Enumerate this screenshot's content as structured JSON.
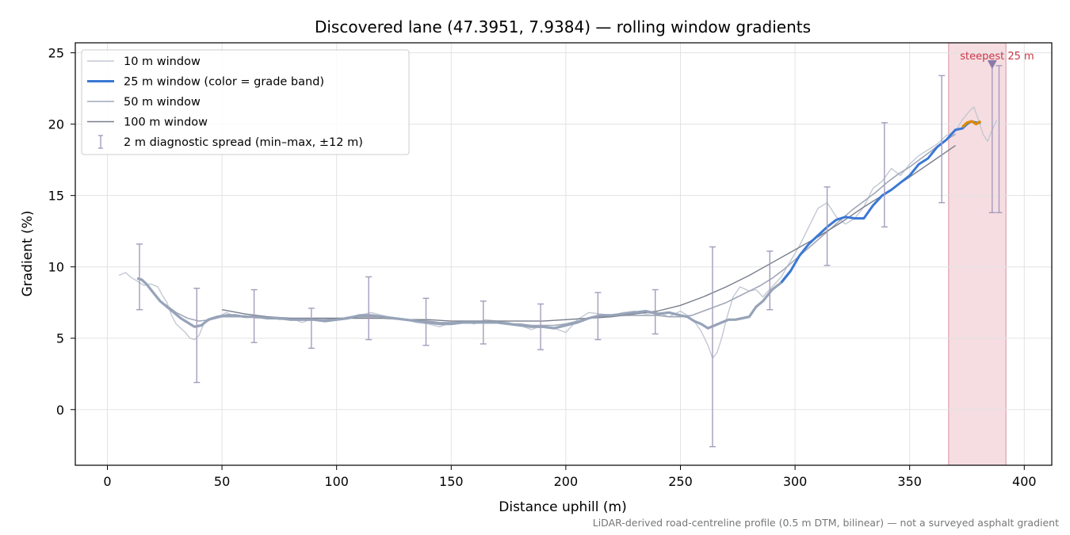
{
  "chart_data": {
    "type": "line",
    "title": "Discovered lane (47.3951, 7.9384) — rolling window gradients",
    "xlabel": "Distance uphill (m)",
    "ylabel": "Gradient (%)",
    "xlim": [
      -14,
      412
    ],
    "ylim": [
      -3.9,
      25.7
    ],
    "xticks": [
      0,
      50,
      100,
      150,
      200,
      250,
      300,
      350,
      400
    ],
    "yticks": [
      0,
      5,
      10,
      15,
      20,
      25
    ],
    "grid": true,
    "legend_position": "upper-left",
    "footnote": "LiDAR-derived road-centreline profile (0.5 m DTM, bilinear) — not a surveyed asphalt gradient",
    "series": [
      {
        "name": "10 m window",
        "color": "#c3c8d2",
        "x": [
          5,
          8,
          10,
          13,
          16,
          19,
          22,
          24,
          26,
          28,
          30,
          32,
          34,
          36,
          38,
          40,
          42,
          45,
          48,
          52,
          56,
          60,
          65,
          70,
          75,
          80,
          85,
          90,
          95,
          100,
          105,
          110,
          115,
          120,
          125,
          130,
          135,
          140,
          145,
          150,
          155,
          160,
          165,
          170,
          175,
          180,
          185,
          190,
          195,
          200,
          205,
          210,
          215,
          220,
          225,
          230,
          235,
          240,
          245,
          250,
          253,
          256,
          259,
          262,
          264,
          266,
          268,
          270,
          273,
          276,
          280,
          283,
          286,
          290,
          294,
          298,
          302,
          306,
          310,
          314,
          318,
          322,
          326,
          330,
          334,
          338,
          342,
          346,
          350,
          354,
          358,
          362,
          366,
          370,
          373,
          376,
          378,
          380,
          382,
          384,
          386,
          388
        ],
        "y": [
          9.4,
          9.6,
          9.3,
          9.0,
          8.7,
          8.8,
          8.6,
          8.0,
          7.5,
          6.6,
          6.0,
          5.7,
          5.4,
          5.0,
          4.9,
          5.2,
          6.0,
          6.3,
          6.5,
          6.8,
          6.5,
          6.6,
          6.4,
          6.5,
          6.3,
          6.4,
          6.1,
          6.4,
          6.2,
          6.3,
          6.5,
          6.6,
          6.8,
          6.6,
          6.4,
          6.3,
          6.1,
          6.0,
          5.8,
          6.1,
          6.2,
          6.0,
          6.3,
          6.2,
          6.1,
          5.9,
          5.6,
          5.9,
          5.7,
          5.4,
          6.3,
          6.8,
          6.7,
          6.6,
          6.8,
          6.9,
          6.7,
          6.8,
          6.5,
          6.9,
          6.6,
          6.2,
          5.5,
          4.5,
          3.6,
          4.0,
          5.0,
          6.3,
          7.9,
          8.6,
          8.3,
          8.4,
          7.9,
          8.6,
          9.3,
          10.4,
          11.5,
          12.8,
          14.1,
          14.5,
          13.5,
          13.0,
          13.4,
          14.2,
          15.5,
          16.0,
          16.9,
          16.4,
          17.2,
          17.8,
          18.2,
          18.6,
          19.2,
          19.5,
          20.3,
          20.9,
          21.2,
          20.3,
          19.3,
          18.8,
          19.6,
          20.3
        ]
      },
      {
        "name": "25 m window (color = grade band)",
        "color": "#3a78d4",
        "x": [
          13,
          15,
          17,
          20,
          23,
          26,
          29,
          32,
          35,
          38,
          41,
          44,
          48,
          52,
          56,
          60,
          65,
          70,
          75,
          80,
          85,
          90,
          95,
          100,
          105,
          110,
          115,
          120,
          125,
          130,
          135,
          140,
          145,
          150,
          155,
          160,
          165,
          170,
          175,
          180,
          185,
          190,
          195,
          200,
          205,
          210,
          215,
          220,
          225,
          230,
          235,
          240,
          245,
          250,
          253,
          256,
          259,
          262,
          265,
          268,
          271,
          274,
          277,
          280,
          283,
          286,
          290,
          294,
          298,
          302,
          306,
          310,
          314,
          318,
          322,
          326,
          330,
          334,
          338,
          342,
          346,
          350,
          354,
          358,
          362,
          366,
          370,
          373,
          375,
          377,
          379,
          381
        ],
        "y": [
          9.2,
          9.1,
          8.8,
          8.2,
          7.6,
          7.2,
          6.8,
          6.4,
          6.1,
          5.8,
          5.9,
          6.3,
          6.5,
          6.6,
          6.6,
          6.5,
          6.5,
          6.4,
          6.4,
          6.3,
          6.3,
          6.3,
          6.2,
          6.3,
          6.4,
          6.6,
          6.6,
          6.5,
          6.4,
          6.3,
          6.2,
          6.1,
          6.0,
          6.0,
          6.1,
          6.1,
          6.1,
          6.1,
          6.0,
          5.9,
          5.8,
          5.8,
          5.7,
          5.9,
          6.1,
          6.4,
          6.6,
          6.6,
          6.7,
          6.8,
          6.9,
          6.7,
          6.8,
          6.6,
          6.5,
          6.2,
          6.0,
          5.7,
          5.9,
          6.1,
          6.3,
          6.3,
          6.4,
          6.5,
          7.2,
          7.6,
          8.4,
          8.9,
          9.7,
          10.8,
          11.6,
          12.2,
          12.8,
          13.3,
          13.5,
          13.4,
          13.4,
          14.3,
          15.0,
          15.4,
          15.9,
          16.4,
          17.2,
          17.6,
          18.4,
          18.9,
          19.6,
          19.7,
          20.0,
          20.2,
          20.1,
          20.1
        ]
      },
      {
        "name": "50 m window",
        "color": "#a0a8b8",
        "x": [
          25,
          30,
          35,
          40,
          45,
          50,
          55,
          60,
          65,
          70,
          75,
          80,
          85,
          90,
          95,
          100,
          105,
          110,
          115,
          120,
          125,
          130,
          135,
          140,
          145,
          150,
          155,
          160,
          165,
          170,
          175,
          180,
          185,
          190,
          195,
          200,
          205,
          210,
          215,
          220,
          225,
          230,
          235,
          240,
          245,
          250,
          255,
          260,
          265,
          270,
          275,
          280,
          285,
          290,
          295,
          300,
          305,
          310,
          315,
          320,
          325,
          330,
          335,
          340,
          345,
          350,
          355,
          360,
          365,
          370
        ],
        "y": [
          7.4,
          6.8,
          6.4,
          6.2,
          6.3,
          6.5,
          6.5,
          6.5,
          6.5,
          6.4,
          6.4,
          6.3,
          6.3,
          6.3,
          6.3,
          6.4,
          6.4,
          6.5,
          6.5,
          6.5,
          6.4,
          6.3,
          6.3,
          6.2,
          6.1,
          6.1,
          6.1,
          6.1,
          6.1,
          6.1,
          6.0,
          6.0,
          5.9,
          5.9,
          5.9,
          6.0,
          6.2,
          6.4,
          6.5,
          6.6,
          6.6,
          6.6,
          6.6,
          6.6,
          6.5,
          6.5,
          6.6,
          6.9,
          7.2,
          7.5,
          7.9,
          8.3,
          8.7,
          9.2,
          9.8,
          10.5,
          11.2,
          11.9,
          12.6,
          13.3,
          14.0,
          14.6,
          15.2,
          15.9,
          16.5,
          17.0,
          17.6,
          18.2,
          18.8,
          19.3
        ]
      },
      {
        "name": "100 m window",
        "color": "#787e8c",
        "x": [
          50,
          60,
          70,
          80,
          90,
          100,
          110,
          120,
          130,
          140,
          150,
          160,
          170,
          180,
          190,
          200,
          210,
          220,
          230,
          240,
          250,
          260,
          270,
          280,
          290,
          300,
          310,
          320,
          330,
          340,
          350,
          360,
          370
        ],
        "y": [
          7.0,
          6.7,
          6.5,
          6.4,
          6.4,
          6.4,
          6.4,
          6.4,
          6.3,
          6.3,
          6.2,
          6.2,
          6.2,
          6.2,
          6.2,
          6.3,
          6.4,
          6.5,
          6.7,
          6.9,
          7.3,
          7.9,
          8.6,
          9.4,
          10.3,
          11.2,
          12.1,
          13.1,
          14.2,
          15.2,
          16.3,
          17.4,
          18.5
        ]
      }
    ],
    "steep_segment": {
      "name": "steepest 25 m",
      "color": "#e08a00",
      "x": [
        373,
        375,
        377,
        379,
        381
      ],
      "y": [
        19.8,
        20.1,
        20.2,
        20.0,
        20.2
      ]
    },
    "errorbars": {
      "name": "2 m diagnostic spread (min–max, ±12 m)",
      "color": "#a49cbc",
      "points": [
        {
          "x": 14,
          "min": 7.0,
          "max": 11.6
        },
        {
          "x": 39,
          "min": 1.9,
          "max": 8.5
        },
        {
          "x": 64,
          "min": 4.7,
          "max": 8.4
        },
        {
          "x": 89,
          "min": 4.3,
          "max": 7.1
        },
        {
          "x": 114,
          "min": 4.9,
          "max": 9.3
        },
        {
          "x": 139,
          "min": 4.5,
          "max": 7.8
        },
        {
          "x": 164,
          "min": 4.6,
          "max": 7.6
        },
        {
          "x": 189,
          "min": 4.2,
          "max": 7.4
        },
        {
          "x": 214,
          "min": 4.9,
          "max": 8.2
        },
        {
          "x": 239,
          "min": 5.3,
          "max": 8.4
        },
        {
          "x": 264,
          "min": -2.6,
          "max": 11.4
        },
        {
          "x": 289,
          "min": 7.0,
          "max": 11.1
        },
        {
          "x": 314,
          "min": 10.1,
          "max": 15.6
        },
        {
          "x": 339,
          "min": 12.8,
          "max": 20.1
        },
        {
          "x": 364,
          "min": 14.5,
          "max": 23.4
        },
        {
          "x": 386,
          "min": 13.8,
          "max": 24.4
        },
        {
          "x": 389,
          "min": 13.8,
          "max": 24.1
        }
      ]
    },
    "highlight_band": {
      "x0": 367,
      "x1": 392,
      "label": "steepest 25 m",
      "color": "#e8b4bc",
      "label_color": "#c83a4a"
    },
    "marker": {
      "x": 386,
      "y": 24.2,
      "shape": "triangle-down",
      "color": "#8a7aa8"
    }
  }
}
